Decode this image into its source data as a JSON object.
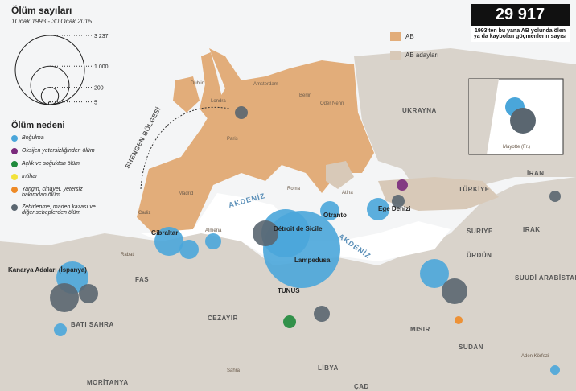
{
  "title": "Ölüm sayıları",
  "subtitle": "1Ocak 1993 - 30 Ocak 2015",
  "size_legend": [
    {
      "value": 3237,
      "label": "3 237"
    },
    {
      "value": 1000,
      "label": "1 000"
    },
    {
      "value": 200,
      "label": "200"
    },
    {
      "value": 5,
      "label": "5"
    }
  ],
  "cause_legend": {
    "title": "Ölüm nedeni",
    "items": [
      {
        "label": "Boğulma",
        "color": "#4aa6da"
      },
      {
        "label": "Oksijen yetersizliğinden ölüm",
        "color": "#7a2a7c"
      },
      {
        "label": "Açlık ve soğuktan ölüm",
        "color": "#1f8a3c"
      },
      {
        "label": "İntihar",
        "color": "#f2e23a"
      },
      {
        "label": "Yangın, cinayet, yetersiz bakımdan ölüm",
        "color": "#ee8a26"
      },
      {
        "label": "Zehirlenme, maden kazası ve diğer sebeplerden ölüm",
        "color": "#5a6670"
      }
    ]
  },
  "total": {
    "value": "29 917",
    "text": "1993'ten bu yana AB yolunda ölen ya da kaybolan göçmenlerin sayısı"
  },
  "map_legend": [
    {
      "label": "AB",
      "color": "#e2ad7a"
    },
    {
      "label": "AB adayları",
      "color": "#d8c9b8"
    }
  ],
  "labels": [
    "UKRAYNA",
    "TÜRKİYE",
    "İRAN",
    "IRAK",
    "SURİYE",
    "ÜRDÜN",
    "SUUDİ ARABİSTAN",
    "MISIR",
    "LİBYA",
    "SUDAN",
    "ÇAD",
    "CEZAYİR",
    "FAS",
    "BATI SAHRA",
    "MORİTANYA",
    "Sahra",
    "Kanarya Adaları (İspanya)",
    "Gibraltar",
    "Détroit de Sicile",
    "Lampedusa",
    "TUNUS",
    "Otranto",
    "Ege Denizi",
    "AKDENİZ",
    "AKDENİZ",
    "SHENGEN BÖLGESİ",
    "Mayotte (Fr.)",
    "Aden Körfezi",
    "Dublin",
    "Londra",
    "Amsterdam",
    "Berlin",
    "Oder Nehri",
    "Paris",
    "Madrid",
    "Roma",
    "Atina",
    "Rabat",
    "Cadiz",
    "Almeria"
  ]
}
